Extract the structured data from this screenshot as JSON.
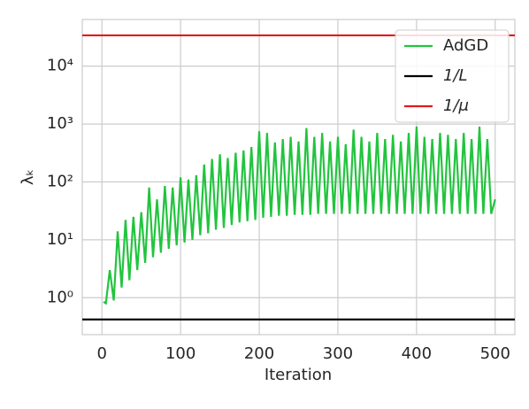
{
  "chart_data": {
    "type": "line",
    "log_y": true,
    "grid": true,
    "legend": "upper right",
    "xlabel": "Iteration",
    "ylabel": "λₖ",
    "xlim": [
      -25,
      525
    ],
    "xticks": [
      0,
      100,
      200,
      300,
      400,
      500
    ],
    "ylim": [
      0.23,
      64000
    ],
    "yticks": [
      {
        "value": 1,
        "label": "10⁰"
      },
      {
        "value": 10,
        "label": "10¹"
      },
      {
        "value": 100,
        "label": "10²"
      },
      {
        "value": 1000,
        "label": "10³"
      },
      {
        "value": 10000,
        "label": "10⁴"
      }
    ],
    "series": [
      {
        "name": "AdGD",
        "color": "#22c43e",
        "x": [
          2,
          5,
          10,
          15,
          20,
          25,
          30,
          35,
          40,
          45,
          50,
          55,
          60,
          65,
          70,
          75,
          80,
          85,
          90,
          95,
          100,
          105,
          110,
          115,
          120,
          125,
          130,
          135,
          140,
          145,
          150,
          155,
          160,
          165,
          170,
          175,
          180,
          185,
          190,
          195,
          200,
          205,
          210,
          215,
          220,
          225,
          230,
          235,
          240,
          245,
          250,
          255,
          260,
          265,
          270,
          275,
          280,
          285,
          290,
          295,
          300,
          305,
          310,
          315,
          320,
          325,
          330,
          335,
          340,
          345,
          350,
          355,
          360,
          365,
          370,
          375,
          380,
          385,
          390,
          395,
          400,
          405,
          410,
          415,
          420,
          425,
          430,
          435,
          440,
          445,
          450,
          455,
          460,
          465,
          470,
          475,
          480,
          485,
          490,
          495,
          500
        ],
        "values": [
          0.85,
          0.8,
          3,
          0.9,
          14,
          1.5,
          22,
          2,
          25,
          3,
          30,
          4,
          80,
          5,
          50,
          6,
          85,
          7,
          80,
          8,
          120,
          9,
          110,
          10,
          130,
          12,
          200,
          13,
          250,
          15,
          300,
          16,
          260,
          18,
          320,
          20,
          350,
          21,
          400,
          22,
          750,
          24,
          700,
          25,
          480,
          26,
          550,
          26,
          600,
          27,
          500,
          27,
          850,
          27,
          600,
          28,
          700,
          28,
          500,
          28,
          600,
          28,
          450,
          28,
          800,
          28,
          600,
          28,
          500,
          28,
          700,
          28,
          550,
          28,
          650,
          28,
          500,
          28,
          700,
          28,
          900,
          28,
          600,
          28,
          550,
          28,
          700,
          28,
          650,
          28,
          550,
          28,
          700,
          28,
          550,
          28,
          900,
          28,
          550,
          28,
          50
        ]
      },
      {
        "name": "1/L",
        "color": "#000000",
        "y": 0.42
      },
      {
        "name": "1/μ",
        "color": "#e31a1c",
        "y": 34000
      }
    ]
  }
}
